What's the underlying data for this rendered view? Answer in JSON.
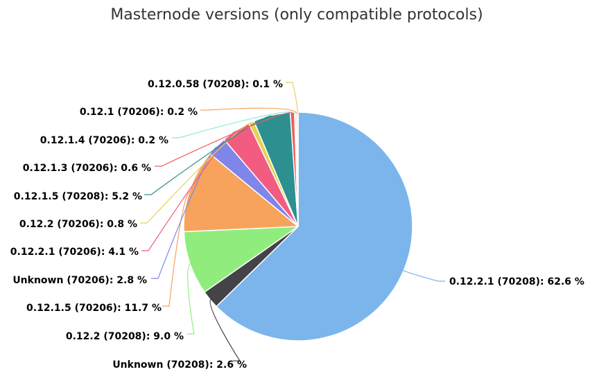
{
  "chart_data": {
    "type": "pie",
    "title": "Masternode versions (only compatible protocols)",
    "slices": [
      {
        "label": "0.12.2.1 (70208): 62.6 %",
        "value": 62.6,
        "color": "#7cb5ec"
      },
      {
        "label": "Unknown (70208): 2.6 %",
        "value": 2.6,
        "color": "#434348"
      },
      {
        "label": "0.12.2 (70208): 9.0 %",
        "value": 9.0,
        "color": "#90ed7d"
      },
      {
        "label": "0.12.1.5 (70206): 11.7 %",
        "value": 11.7,
        "color": "#f7a35c"
      },
      {
        "label": "Unknown (70206): 2.8 %",
        "value": 2.8,
        "color": "#8085e9"
      },
      {
        "label": "0.12.2.1 (70206): 4.1 %",
        "value": 4.1,
        "color": "#f15c80"
      },
      {
        "label": "0.12.2 (70206): 0.8 %",
        "value": 0.8,
        "color": "#e4d354"
      },
      {
        "label": "0.12.1.5 (70208): 5.2 %",
        "value": 5.2,
        "color": "#2b908f"
      },
      {
        "label": "0.12.1.3 (70206): 0.6 %",
        "value": 0.6,
        "color": "#f45b5b"
      },
      {
        "label": "0.12.1.4 (70206): 0.2 %",
        "value": 0.2,
        "color": "#91e8e1"
      },
      {
        "label": "0.12.1 (70206): 0.2 %",
        "value": 0.2,
        "color": "#f7a35c"
      },
      {
        "label": "0.12.0.58 (70208): 0.1 %",
        "value": 0.1,
        "color": "#e4d354"
      }
    ]
  }
}
